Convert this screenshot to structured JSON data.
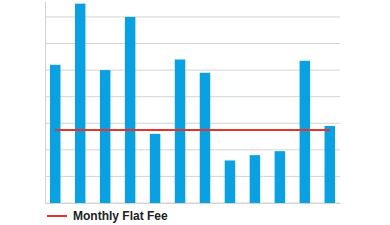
{
  "chart_data": {
    "type": "bar",
    "ylim": [
      0,
      7.6
    ],
    "yticks": [
      0,
      1,
      2,
      3,
      4,
      5,
      6,
      7
    ],
    "grid": true,
    "tick_labels": false,
    "legend": "bottom-left",
    "categories": [
      null,
      null,
      null,
      null,
      null,
      null,
      null,
      null,
      null,
      null,
      null,
      null
    ],
    "series": [
      {
        "type": "bar",
        "color": "#0aa1e2",
        "values": [
          5.2,
          7.5,
          5.0,
          7.0,
          2.6,
          5.4,
          4.9,
          1.6,
          1.8,
          1.95,
          5.35,
          2.9
        ]
      },
      {
        "name": "Monthly Flat Fee",
        "type": "line",
        "color": "#e5342a",
        "values": [
          2.75,
          2.75,
          2.75,
          2.75,
          2.75,
          2.75,
          2.75,
          2.75,
          2.75,
          2.75,
          2.75,
          2.75
        ]
      }
    ]
  }
}
